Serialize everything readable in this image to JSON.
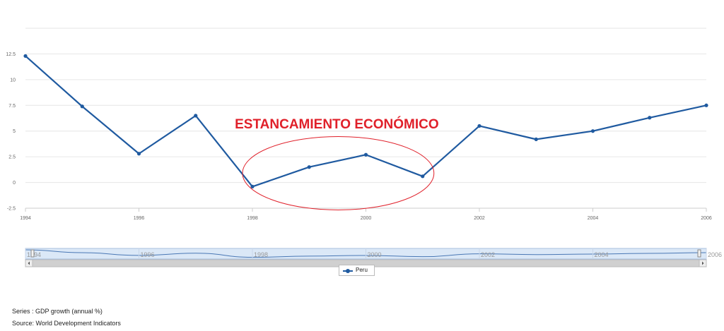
{
  "chart_data": {
    "type": "line",
    "x": [
      1994,
      1995,
      1996,
      1997,
      1998,
      1999,
      2000,
      2001,
      2002,
      2003,
      2004,
      2005,
      2006
    ],
    "series": [
      {
        "name": "Peru",
        "values": [
          12.3,
          7.4,
          2.8,
          6.5,
          -0.4,
          1.5,
          2.7,
          0.6,
          5.5,
          4.2,
          5.0,
          6.3,
          7.5
        ]
      }
    ],
    "y_ticks": [
      "12.5",
      "10",
      "7.5",
      "5",
      "2.5",
      "0",
      "-2.5"
    ],
    "x_ticks": [
      "1994",
      "1996",
      "1998",
      "2000",
      "2002",
      "2004",
      "2006"
    ],
    "ylim": [
      -2.5,
      15
    ],
    "xlim": [
      1994,
      2006
    ],
    "grid": true,
    "legend_position": "bottom-center",
    "color": "#1f5aa0",
    "annotation": {
      "text": "ESTANCAMIENTO  ECONÓMICO",
      "color": "#e0202a"
    },
    "navigator": {
      "ticks": [
        "1994",
        "1996",
        "1998",
        "2000",
        "2002",
        "2004",
        "2006"
      ]
    }
  },
  "footer": {
    "series_line": "Series : GDP growth (annual %)",
    "source_line": "Source: World Development Indicators"
  },
  "legend": {
    "label": "Peru"
  }
}
